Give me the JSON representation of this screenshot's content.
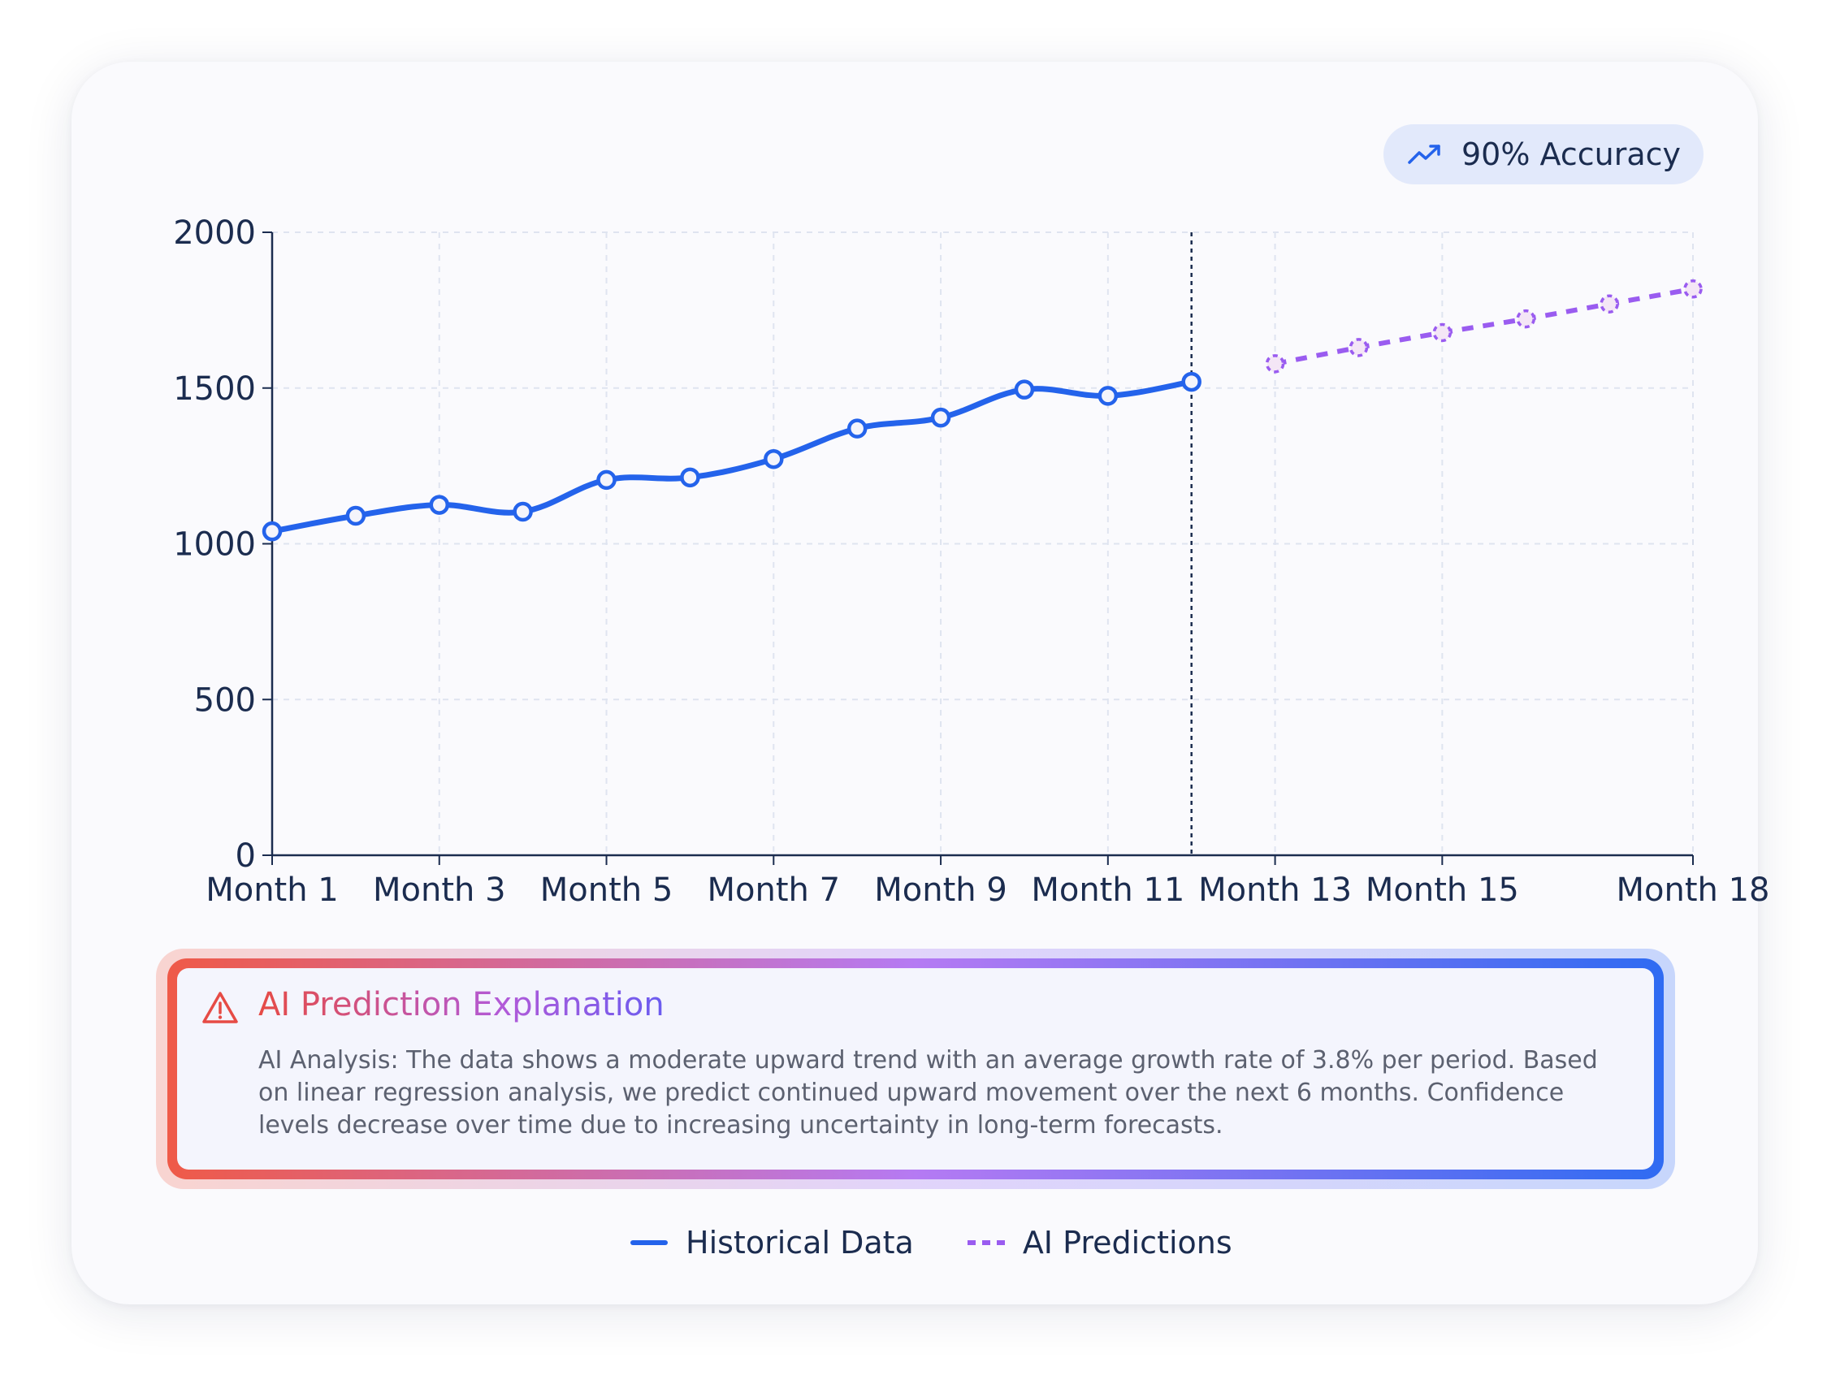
{
  "badge": {
    "label": "90% Accuracy",
    "icon": "trending-up-icon"
  },
  "chart_data": {
    "type": "line",
    "categories": [
      "Month 1",
      "Month 2",
      "Month 3",
      "Month 4",
      "Month 5",
      "Month 6",
      "Month 7",
      "Month 8",
      "Month 9",
      "Month 10",
      "Month 11",
      "Month 12",
      "Month 13",
      "Month 14",
      "Month 15",
      "Month 16",
      "Month 17",
      "Month 18"
    ],
    "tick_labels": [
      "Month 1",
      "Month 3",
      "Month 5",
      "Month 7",
      "Month 9",
      "Month 11",
      "Month 13",
      "Month 15",
      "Month 18"
    ],
    "yticks": [
      0,
      500,
      1000,
      1500,
      2000
    ],
    "ylim": [
      0,
      2000
    ],
    "grid": true,
    "series": [
      {
        "name": "Historical Data",
        "style": "solid",
        "color": "#2463eb",
        "x": [
          "Month 1",
          "Month 2",
          "Month 3",
          "Month 4",
          "Month 5",
          "Month 6",
          "Month 7",
          "Month 8",
          "Month 9",
          "Month 10",
          "Month 11",
          "Month 12"
        ],
        "values": [
          1040,
          1090,
          1125,
          1103,
          1205,
          1213,
          1272,
          1370,
          1405,
          1495,
          1475,
          1520
        ]
      },
      {
        "name": "AI Predictions",
        "style": "dashed",
        "color": "#9a5cf0",
        "x": [
          "Month 13",
          "Month 14",
          "Month 15",
          "Month 16",
          "Month 17",
          "Month 18"
        ],
        "values": [
          1578,
          1630,
          1678,
          1722,
          1770,
          1818
        ]
      }
    ],
    "divider_at": "Month 12",
    "legend_position": "bottom"
  },
  "explanation": {
    "icon": "warning-icon",
    "title": "AI Prediction Explanation",
    "text": "AI Analysis: The data shows a moderate upward trend with an average growth rate of 3.8% per period. Based on linear regression analysis, we predict continued upward movement over the next 6 months. Confidence levels decrease over time due to increasing uncertainty in long-term forecasts."
  },
  "legend": {
    "items": [
      {
        "label": "Historical Data",
        "style": "solid",
        "color": "#2463eb"
      },
      {
        "label": "AI Predictions",
        "style": "dashed",
        "color": "#9a5cf0"
      }
    ]
  }
}
